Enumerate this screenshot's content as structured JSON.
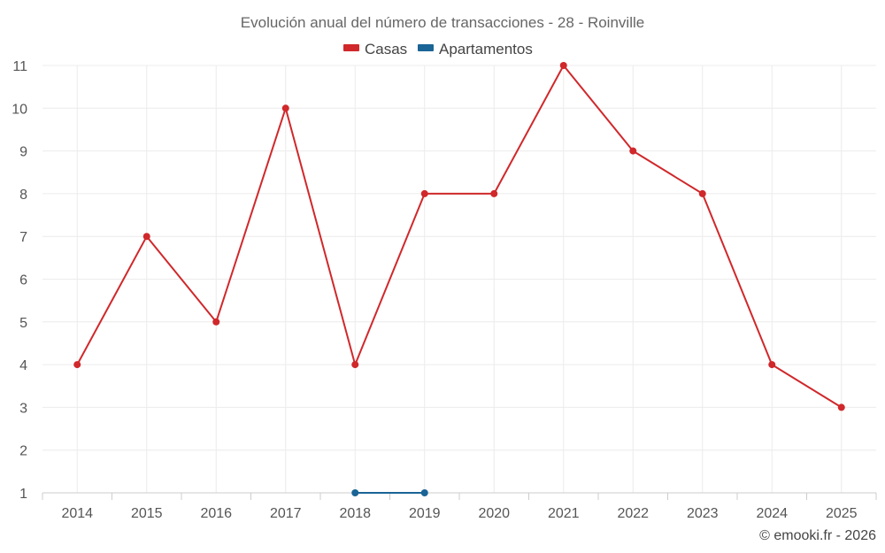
{
  "chart_data": {
    "type": "line",
    "title": "Evolución anual del número de transacciones - 28 - Roinville",
    "categories": [
      "2014",
      "2015",
      "2016",
      "2017",
      "2018",
      "2019",
      "2020",
      "2021",
      "2022",
      "2023",
      "2024",
      "2025"
    ],
    "ylim": [
      1,
      11
    ],
    "yticks": [
      1,
      2,
      3,
      4,
      5,
      6,
      7,
      8,
      9,
      10,
      11
    ],
    "grid": true,
    "legend_position": "top-center",
    "series": [
      {
        "name": "Casas",
        "color": "#d0282b",
        "values": [
          4,
          7,
          5,
          10,
          4,
          8,
          8,
          11,
          9,
          8,
          4,
          3
        ]
      },
      {
        "name": "Apartamentos",
        "color": "#1a6496",
        "values": [
          null,
          null,
          null,
          null,
          1,
          1,
          null,
          null,
          null,
          null,
          null,
          null
        ]
      }
    ]
  },
  "credit": "© emooki.fr - 2026"
}
